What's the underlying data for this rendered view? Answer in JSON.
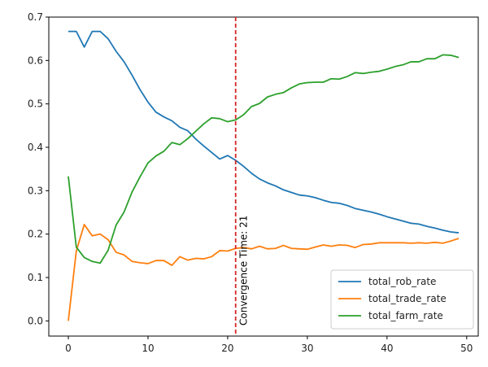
{
  "chart_data": {
    "type": "line",
    "title": "",
    "xlabel": "",
    "ylabel": "",
    "xlim": [
      -2.45,
      51.45
    ],
    "ylim": [
      -0.035,
      0.7
    ],
    "grid": false,
    "legend_position": "lower-right",
    "xticks": [
      0,
      10,
      20,
      30,
      40,
      50
    ],
    "yticks": [
      0.0,
      0.1,
      0.2,
      0.3,
      0.4,
      0.5,
      0.6,
      0.7
    ],
    "x": [
      0,
      1,
      2,
      3,
      4,
      5,
      6,
      7,
      8,
      9,
      10,
      11,
      12,
      13,
      14,
      15,
      16,
      17,
      18,
      19,
      20,
      21,
      22,
      23,
      24,
      25,
      26,
      27,
      28,
      29,
      30,
      31,
      32,
      33,
      34,
      35,
      36,
      37,
      38,
      39,
      40,
      41,
      42,
      43,
      44,
      45,
      46,
      47,
      48,
      49
    ],
    "series": [
      {
        "name": "total_rob_rate",
        "color": "#1f77b4",
        "values": [
          0.667,
          0.667,
          0.631,
          0.667,
          0.667,
          0.65,
          0.621,
          0.597,
          0.566,
          0.533,
          0.504,
          0.481,
          0.47,
          0.461,
          0.446,
          0.438,
          0.419,
          0.403,
          0.388,
          0.373,
          0.381,
          0.37,
          0.356,
          0.34,
          0.327,
          0.318,
          0.311,
          0.302,
          0.296,
          0.29,
          0.288,
          0.284,
          0.278,
          0.273,
          0.271,
          0.266,
          0.259,
          0.255,
          0.251,
          0.246,
          0.24,
          0.235,
          0.23,
          0.225,
          0.223,
          0.218,
          0.214,
          0.209,
          0.205,
          0.203
        ]
      },
      {
        "name": "total_trade_rate",
        "color": "#ff7f0e",
        "values": [
          0.0,
          0.161,
          0.222,
          0.196,
          0.2,
          0.187,
          0.158,
          0.152,
          0.137,
          0.134,
          0.132,
          0.139,
          0.139,
          0.128,
          0.148,
          0.14,
          0.144,
          0.143,
          0.148,
          0.162,
          0.161,
          0.167,
          0.169,
          0.166,
          0.172,
          0.166,
          0.167,
          0.174,
          0.167,
          0.166,
          0.165,
          0.17,
          0.175,
          0.172,
          0.175,
          0.174,
          0.169,
          0.176,
          0.177,
          0.18,
          0.18,
          0.18,
          0.18,
          0.179,
          0.18,
          0.179,
          0.181,
          0.179,
          0.184,
          0.19
        ]
      },
      {
        "name": "total_farm_rate",
        "color": "#2ca02c",
        "values": [
          0.333,
          0.17,
          0.146,
          0.137,
          0.133,
          0.163,
          0.221,
          0.251,
          0.297,
          0.332,
          0.364,
          0.38,
          0.391,
          0.411,
          0.406,
          0.42,
          0.437,
          0.454,
          0.468,
          0.466,
          0.459,
          0.463,
          0.475,
          0.494,
          0.501,
          0.516,
          0.522,
          0.526,
          0.537,
          0.546,
          0.549,
          0.55,
          0.55,
          0.558,
          0.557,
          0.563,
          0.572,
          0.57,
          0.573,
          0.575,
          0.58,
          0.586,
          0.59,
          0.597,
          0.597,
          0.604,
          0.604,
          0.613,
          0.612,
          0.607
        ]
      }
    ],
    "vline": {
      "x": 21,
      "color": "#d62728",
      "style": "dashed",
      "label": "Convergence Time: 21"
    }
  }
}
